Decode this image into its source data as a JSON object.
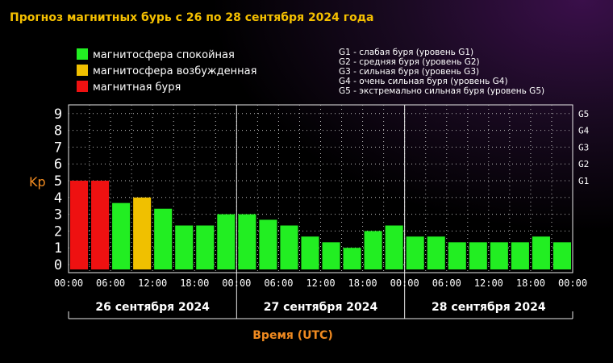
{
  "title": "Прогноз магнитных бурь с 26 по 28 сентября 2024 года",
  "legend_status": [
    {
      "label": "магнитосфера спокойная",
      "color": "#22ee22"
    },
    {
      "label": "магнитосфера возбужденная",
      "color": "#f0c000"
    },
    {
      "label": "магнитная буря",
      "color": "#ee1111"
    }
  ],
  "legend_levels": [
    "G1 - слабая буря (уровень G1)",
    "G2 - средняя буря (уровень G2)",
    "G3 - сильная буря (уровень G3)",
    "G4 - очень сильная буря (уровень G4)",
    "G5 - экстремально сильная буря (уровень G5)"
  ],
  "chart_data": {
    "type": "bar",
    "ylabel": "Kp",
    "xlabel": "Время (UTC)",
    "ylim": [
      0,
      9
    ],
    "y_ticks": [
      "0",
      "1",
      "2",
      "3",
      "4",
      "5",
      "6",
      "7",
      "8",
      "9"
    ],
    "right_ticks": [
      {
        "label": "G1",
        "value": 5
      },
      {
        "label": "G2",
        "value": 6
      },
      {
        "label": "G3",
        "value": 7
      },
      {
        "label": "G4",
        "value": 8
      },
      {
        "label": "G5",
        "value": 9
      }
    ],
    "x_ticks": [
      "00:00",
      "06:00",
      "12:00",
      "18:00",
      "00:00",
      "06:00",
      "12:00",
      "18:00",
      "00:00",
      "06:00",
      "12:00",
      "18:00",
      "00:00"
    ],
    "days": [
      "26 сентября 2024",
      "27 сентября 2024",
      "28 сентября 2024"
    ],
    "interval_hours": 3,
    "values": [
      5,
      5,
      3.67,
      4,
      3.33,
      2.33,
      2.33,
      3,
      3,
      2.67,
      2.33,
      1.67,
      1.33,
      1,
      2,
      2.33,
      1.67,
      1.67,
      1.33,
      1.33,
      1.33,
      1.33,
      1.67,
      1.33
    ],
    "colors": {
      "quiet": "#22ee22",
      "active": "#f0c000",
      "storm": "#ee1111"
    },
    "grid": true
  }
}
